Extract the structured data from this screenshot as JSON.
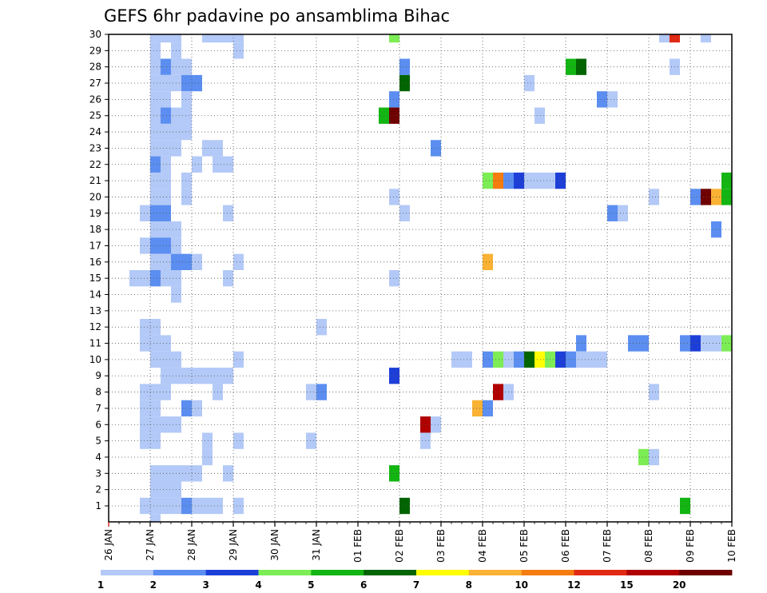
{
  "chart_data": {
    "type": "heatmap",
    "title": "GEFS 6hr padavine po ansamblima Bihac",
    "xlabel": "",
    "ylabel": "",
    "x_tick_labels": [
      "26 JAN",
      "27 JAN",
      "28 JAN",
      "29 JAN",
      "30 JAN",
      "31 JAN",
      "01 FEB",
      "02 FEB",
      "03 FEB",
      "04 FEB",
      "05 FEB",
      "06 FEB",
      "07 FEB",
      "08 FEB",
      "09 FEB",
      "10 FEB"
    ],
    "y_tick_labels": [
      "1",
      "2",
      "3",
      "4",
      "5",
      "6",
      "7",
      "8",
      "9",
      "10",
      "11",
      "12",
      "13",
      "14",
      "15",
      "16",
      "17",
      "18",
      "19",
      "20",
      "21",
      "22",
      "23",
      "24",
      "25",
      "26",
      "27",
      "28",
      "29",
      "30"
    ],
    "x_axis": {
      "unit": "6-hour steps from 26 JAN 00Z",
      "range": [
        0,
        60
      ]
    },
    "y_axis": {
      "unit": "ensemble member",
      "range": [
        1,
        30
      ]
    },
    "grid": "dotted",
    "colorbar": {
      "levels": [
        1,
        2,
        3,
        4,
        5,
        6,
        7,
        8,
        10,
        12,
        15,
        20
      ],
      "tick_labels": [
        "1",
        "2",
        "3",
        "4",
        "5",
        "6",
        "7",
        "8",
        "10",
        "12",
        "15",
        "20"
      ],
      "colors": [
        "#b3c9f7",
        "#5b8ef0",
        "#1d3fd8",
        "#7ded55",
        "#12b512",
        "#006400",
        "#ffff00",
        "#f9b233",
        "#f57c0f",
        "#e02a14",
        "#b00000",
        "#6e0000"
      ]
    },
    "cell_level_index_note": "each cell: member, 6-hour step index (0 = 26 JAN 00Z), colour class index into colorbar.colors",
    "cells": [
      [
        30,
        4,
        0
      ],
      [
        30,
        5,
        0
      ],
      [
        30,
        6,
        0
      ],
      [
        30,
        9,
        0
      ],
      [
        30,
        10,
        0
      ],
      [
        30,
        11,
        0
      ],
      [
        30,
        12,
        0
      ],
      [
        30,
        27,
        3
      ],
      [
        30,
        53,
        0
      ],
      [
        30,
        54,
        9
      ],
      [
        30,
        57,
        0
      ],
      [
        29,
        4,
        0
      ],
      [
        29,
        6,
        0
      ],
      [
        29,
        12,
        0
      ],
      [
        28,
        4,
        0
      ],
      [
        28,
        5,
        1
      ],
      [
        28,
        6,
        0
      ],
      [
        28,
        7,
        0
      ],
      [
        28,
        28,
        1
      ],
      [
        28,
        44,
        4
      ],
      [
        28,
        45,
        5
      ],
      [
        28,
        54,
        0
      ],
      [
        27,
        4,
        0
      ],
      [
        27,
        5,
        0
      ],
      [
        27,
        6,
        0
      ],
      [
        27,
        7,
        1
      ],
      [
        27,
        8,
        1
      ],
      [
        27,
        28,
        5
      ],
      [
        27,
        40,
        0
      ],
      [
        26,
        4,
        0
      ],
      [
        26,
        5,
        0
      ],
      [
        26,
        7,
        0
      ],
      [
        26,
        27,
        1
      ],
      [
        26,
        47,
        1
      ],
      [
        26,
        48,
        0
      ],
      [
        25,
        4,
        0
      ],
      [
        25,
        5,
        1
      ],
      [
        25,
        6,
        0
      ],
      [
        25,
        7,
        0
      ],
      [
        25,
        26,
        4
      ],
      [
        25,
        27,
        11
      ],
      [
        25,
        41,
        0
      ],
      [
        24,
        4,
        0
      ],
      [
        24,
        5,
        0
      ],
      [
        24,
        6,
        0
      ],
      [
        24,
        7,
        0
      ],
      [
        23,
        4,
        0
      ],
      [
        23,
        5,
        0
      ],
      [
        23,
        6,
        0
      ],
      [
        23,
        9,
        0
      ],
      [
        23,
        10,
        0
      ],
      [
        23,
        31,
        1
      ],
      [
        22,
        4,
        1
      ],
      [
        22,
        5,
        0
      ],
      [
        22,
        8,
        0
      ],
      [
        22,
        10,
        0
      ],
      [
        22,
        11,
        0
      ],
      [
        21,
        4,
        0
      ],
      [
        21,
        5,
        0
      ],
      [
        21,
        7,
        0
      ],
      [
        21,
        36,
        3
      ],
      [
        21,
        37,
        8
      ],
      [
        21,
        38,
        1
      ],
      [
        21,
        39,
        2
      ],
      [
        21,
        40,
        0
      ],
      [
        21,
        41,
        0
      ],
      [
        21,
        42,
        0
      ],
      [
        21,
        43,
        2
      ],
      [
        21,
        59,
        4
      ],
      [
        20,
        4,
        0
      ],
      [
        20,
        5,
        0
      ],
      [
        20,
        7,
        0
      ],
      [
        20,
        27,
        0
      ],
      [
        20,
        52,
        0
      ],
      [
        20,
        56,
        1
      ],
      [
        20,
        57,
        11
      ],
      [
        20,
        58,
        7
      ],
      [
        20,
        59,
        4
      ],
      [
        19,
        3,
        0
      ],
      [
        19,
        4,
        1
      ],
      [
        19,
        5,
        1
      ],
      [
        19,
        11,
        0
      ],
      [
        19,
        28,
        0
      ],
      [
        19,
        48,
        1
      ],
      [
        19,
        49,
        0
      ],
      [
        18,
        4,
        0
      ],
      [
        18,
        5,
        0
      ],
      [
        18,
        6,
        0
      ],
      [
        18,
        58,
        1
      ],
      [
        17,
        3,
        0
      ],
      [
        17,
        4,
        1
      ],
      [
        17,
        5,
        1
      ],
      [
        17,
        6,
        0
      ],
      [
        16,
        4,
        0
      ],
      [
        16,
        5,
        0
      ],
      [
        16,
        6,
        1
      ],
      [
        16,
        7,
        1
      ],
      [
        16,
        8,
        0
      ],
      [
        16,
        12,
        0
      ],
      [
        16,
        36,
        7
      ],
      [
        15,
        2,
        0
      ],
      [
        15,
        3,
        0
      ],
      [
        15,
        4,
        1
      ],
      [
        15,
        5,
        0
      ],
      [
        15,
        6,
        0
      ],
      [
        15,
        11,
        0
      ],
      [
        15,
        27,
        0
      ],
      [
        14,
        6,
        0
      ],
      [
        12,
        3,
        0
      ],
      [
        12,
        4,
        0
      ],
      [
        12,
        20,
        0
      ],
      [
        11,
        3,
        0
      ],
      [
        11,
        4,
        0
      ],
      [
        11,
        5,
        0
      ],
      [
        11,
        45,
        1
      ],
      [
        11,
        50,
        1
      ],
      [
        11,
        51,
        1
      ],
      [
        11,
        55,
        1
      ],
      [
        11,
        56,
        2
      ],
      [
        11,
        57,
        0
      ],
      [
        11,
        58,
        0
      ],
      [
        11,
        59,
        3
      ],
      [
        10,
        4,
        0
      ],
      [
        10,
        5,
        0
      ],
      [
        10,
        6,
        0
      ],
      [
        10,
        12,
        0
      ],
      [
        10,
        33,
        0
      ],
      [
        10,
        34,
        0
      ],
      [
        10,
        36,
        1
      ],
      [
        10,
        37,
        3
      ],
      [
        10,
        38,
        0
      ],
      [
        10,
        39,
        1
      ],
      [
        10,
        40,
        5
      ],
      [
        10,
        41,
        6
      ],
      [
        10,
        42,
        3
      ],
      [
        10,
        43,
        2
      ],
      [
        10,
        44,
        1
      ],
      [
        10,
        45,
        0
      ],
      [
        10,
        46,
        0
      ],
      [
        10,
        47,
        0
      ],
      [
        9,
        5,
        0
      ],
      [
        9,
        6,
        0
      ],
      [
        9,
        7,
        0
      ],
      [
        9,
        8,
        0
      ],
      [
        9,
        9,
        0
      ],
      [
        9,
        10,
        0
      ],
      [
        9,
        11,
        0
      ],
      [
        9,
        27,
        2
      ],
      [
        8,
        3,
        0
      ],
      [
        8,
        4,
        0
      ],
      [
        8,
        5,
        0
      ],
      [
        8,
        10,
        0
      ],
      [
        8,
        19,
        0
      ],
      [
        8,
        20,
        1
      ],
      [
        8,
        37,
        10
      ],
      [
        8,
        38,
        0
      ],
      [
        8,
        52,
        0
      ],
      [
        7,
        3,
        0
      ],
      [
        7,
        4,
        0
      ],
      [
        7,
        7,
        1
      ],
      [
        7,
        8,
        0
      ],
      [
        7,
        35,
        7
      ],
      [
        7,
        36,
        1
      ],
      [
        6,
        3,
        0
      ],
      [
        6,
        4,
        0
      ],
      [
        6,
        5,
        0
      ],
      [
        6,
        6,
        0
      ],
      [
        6,
        30,
        10
      ],
      [
        6,
        31,
        0
      ],
      [
        5,
        3,
        0
      ],
      [
        5,
        4,
        0
      ],
      [
        5,
        9,
        0
      ],
      [
        5,
        12,
        0
      ],
      [
        5,
        19,
        0
      ],
      [
        5,
        30,
        0
      ],
      [
        4,
        9,
        0
      ],
      [
        4,
        51,
        3
      ],
      [
        4,
        52,
        0
      ],
      [
        3,
        4,
        0
      ],
      [
        3,
        5,
        0
      ],
      [
        3,
        6,
        0
      ],
      [
        3,
        7,
        0
      ],
      [
        3,
        8,
        0
      ],
      [
        3,
        11,
        0
      ],
      [
        3,
        27,
        4
      ],
      [
        2,
        4,
        0
      ],
      [
        2,
        5,
        0
      ],
      [
        2,
        6,
        0
      ],
      [
        1,
        3,
        0
      ],
      [
        1,
        4,
        0
      ],
      [
        1,
        5,
        0
      ],
      [
        1,
        6,
        0
      ],
      [
        1,
        7,
        1
      ],
      [
        1,
        8,
        0
      ],
      [
        1,
        9,
        0
      ],
      [
        1,
        10,
        0
      ],
      [
        1,
        12,
        0
      ],
      [
        1,
        28,
        5
      ],
      [
        1,
        55,
        4
      ],
      [
        0,
        4,
        0
      ]
    ]
  }
}
